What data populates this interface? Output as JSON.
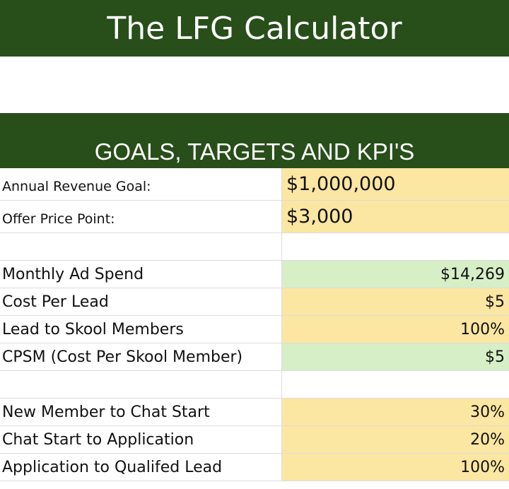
{
  "header": {
    "title": "The LFG Calculator"
  },
  "section": {
    "title": "GOALS, TARGETS AND KPI'S"
  },
  "colors": {
    "header_green": "#284e1a",
    "input_yellow": "#fbe6a2",
    "computed_green": "#d6efc6"
  },
  "rows": [
    {
      "label": "Annual Revenue Goal:",
      "value": "$1,000,000",
      "fill": "yellow"
    },
    {
      "label": "Offer Price Point:",
      "value": "$3,000",
      "fill": "yellow"
    },
    {
      "label": "",
      "value": "",
      "fill": "white"
    },
    {
      "label": "Monthly Ad Spend",
      "value": "$14,269",
      "fill": "green"
    },
    {
      "label": "Cost Per Lead",
      "value": "$5",
      "fill": "yellow"
    },
    {
      "label": "Lead to Skool Members",
      "value": "100%",
      "fill": "yellow"
    },
    {
      "label": "CPSM (Cost Per Skool Member)",
      "value": "$5",
      "fill": "green"
    },
    {
      "label": "",
      "value": "",
      "fill": "white"
    },
    {
      "label": "New Member to Chat Start",
      "value": "30%",
      "fill": "yellow"
    },
    {
      "label": "Chat Start to Application",
      "value": "20%",
      "fill": "yellow"
    },
    {
      "label": "Application to Qualifed Lead",
      "value": "100%",
      "fill": "yellow"
    }
  ]
}
